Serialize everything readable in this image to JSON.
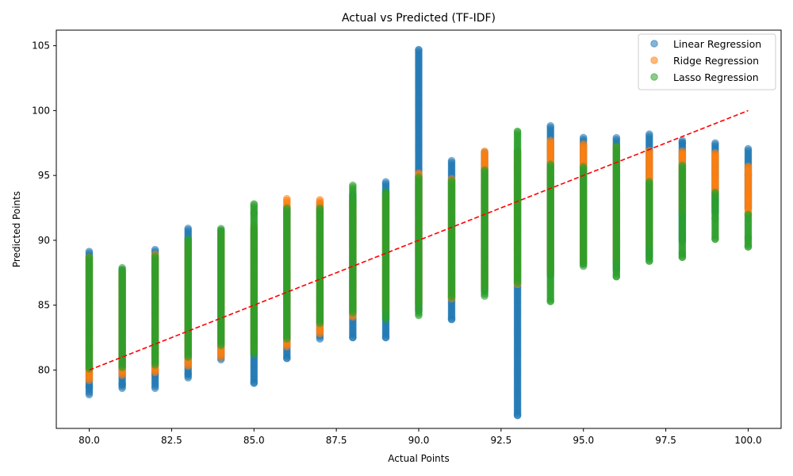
{
  "chart_data": {
    "type": "scatter",
    "title": "Actual vs Predicted (TF-IDF)",
    "xlabel": "Actual Points",
    "ylabel": "Predicted Points",
    "xlim": [
      79,
      101
    ],
    "ylim": [
      75.5,
      106.2
    ],
    "x_ticks": [
      "80.0",
      "82.5",
      "85.0",
      "87.5",
      "90.0",
      "92.5",
      "95.0",
      "97.5",
      "100.0"
    ],
    "y_ticks": [
      "80",
      "85",
      "90",
      "95",
      "100",
      "105"
    ],
    "grid": false,
    "legend_position": "top-right",
    "reference_line": {
      "style": "dashed",
      "color": "#ff0000",
      "from": [
        80,
        80
      ],
      "to": [
        100,
        100
      ]
    },
    "series": [
      {
        "name": "Linear Regression",
        "color": "#1f77b4",
        "ranges": [
          {
            "x": 80,
            "min": 78.1,
            "max": 89.2
          },
          {
            "x": 81,
            "min": 78.6,
            "max": 87.8
          },
          {
            "x": 82,
            "min": 78.6,
            "max": 89.3
          },
          {
            "x": 83,
            "min": 79.4,
            "max": 91.0
          },
          {
            "x": 84,
            "min": 80.8,
            "max": 90.8
          },
          {
            "x": 85,
            "min": 79.0,
            "max": 90.9
          },
          {
            "x": 86,
            "min": 80.9,
            "max": 92.6
          },
          {
            "x": 87,
            "min": 82.4,
            "max": 92.9
          },
          {
            "x": 88,
            "min": 82.5,
            "max": 93.6
          },
          {
            "x": 89,
            "min": 82.5,
            "max": 94.5
          },
          {
            "x": 90,
            "min": 84.6,
            "max": 104.7
          },
          {
            "x": 91,
            "min": 83.9,
            "max": 96.2
          },
          {
            "x": 92,
            "min": 86.1,
            "max": 96.8
          },
          {
            "x": 93,
            "min": 76.5,
            "max": 97.0
          },
          {
            "x": 94,
            "min": 87.3,
            "max": 98.9
          },
          {
            "x": 95,
            "min": 88.2,
            "max": 98.0
          },
          {
            "x": 96,
            "min": 87.7,
            "max": 98.0
          },
          {
            "x": 97,
            "min": 88.7,
            "max": 98.2
          },
          {
            "x": 98,
            "min": 89.9,
            "max": 97.8
          },
          {
            "x": 99,
            "min": 92.1,
            "max": 97.6
          },
          {
            "x": 100,
            "min": 92.5,
            "max": 97.1
          }
        ],
        "extra_points": [
          [
            90,
            104.7
          ],
          [
            93,
            76.5
          ],
          [
            81,
            78.9
          ],
          [
            80,
            78.7
          ],
          [
            82,
            79.7
          ],
          [
            83,
            79.7
          ],
          [
            85,
            79.0
          ],
          [
            86,
            80.9
          ],
          [
            88,
            82.5
          ],
          [
            89,
            82.5
          ],
          [
            91,
            83.9
          ],
          [
            100,
            95.0
          ],
          [
            100,
            92.5
          ],
          [
            99,
            95.1
          ],
          [
            98,
            97.5
          ]
        ]
      },
      {
        "name": "Ridge Regression",
        "color": "#ff7f0e",
        "ranges": [
          {
            "x": 80,
            "min": 79.2,
            "max": 88.7
          },
          {
            "x": 81,
            "min": 79.6,
            "max": 87.6
          },
          {
            "x": 82,
            "min": 79.8,
            "max": 89.0
          },
          {
            "x": 83,
            "min": 80.3,
            "max": 89.8
          },
          {
            "x": 84,
            "min": 81.0,
            "max": 90.6
          },
          {
            "x": 85,
            "min": 81.5,
            "max": 91.1
          },
          {
            "x": 86,
            "min": 81.8,
            "max": 93.2
          },
          {
            "x": 87,
            "min": 82.8,
            "max": 93.2
          },
          {
            "x": 88,
            "min": 84.1,
            "max": 93.0
          },
          {
            "x": 89,
            "min": 84.7,
            "max": 93.5
          },
          {
            "x": 90,
            "min": 85.1,
            "max": 95.2
          },
          {
            "x": 91,
            "min": 85.5,
            "max": 94.8
          },
          {
            "x": 92,
            "min": 86.3,
            "max": 96.9
          },
          {
            "x": 93,
            "min": 86.6,
            "max": 96.8
          },
          {
            "x": 94,
            "min": 87.5,
            "max": 97.7
          },
          {
            "x": 95,
            "min": 88.3,
            "max": 97.5
          },
          {
            "x": 96,
            "min": 88.5,
            "max": 97.2
          },
          {
            "x": 97,
            "min": 89.6,
            "max": 97.0
          },
          {
            "x": 98,
            "min": 92.3,
            "max": 96.9
          },
          {
            "x": 99,
            "min": 93.5,
            "max": 96.8
          },
          {
            "x": 100,
            "min": 92.0,
            "max": 95.7
          }
        ],
        "extra_points": [
          [
            100,
            95.7
          ],
          [
            100,
            93.3
          ],
          [
            99,
            96.4
          ],
          [
            99,
            94.5
          ],
          [
            98,
            92.6
          ],
          [
            98,
            94.5
          ],
          [
            98,
            96.6
          ]
        ]
      },
      {
        "name": "Lasso Regression",
        "color": "#2ca02c",
        "ranges": [
          {
            "x": 80,
            "min": 80.1,
            "max": 88.8
          },
          {
            "x": 81,
            "min": 80.2,
            "max": 87.9
          },
          {
            "x": 82,
            "min": 80.4,
            "max": 88.9
          },
          {
            "x": 83,
            "min": 81.0,
            "max": 90.2
          },
          {
            "x": 84,
            "min": 81.9,
            "max": 90.9
          },
          {
            "x": 85,
            "min": 81.2,
            "max": 92.8
          },
          {
            "x": 86,
            "min": 82.4,
            "max": 92.5
          },
          {
            "x": 87,
            "min": 83.6,
            "max": 92.5
          },
          {
            "x": 88,
            "min": 84.4,
            "max": 94.3
          },
          {
            "x": 89,
            "min": 83.9,
            "max": 93.8
          },
          {
            "x": 90,
            "min": 84.2,
            "max": 94.9
          },
          {
            "x": 91,
            "min": 85.6,
            "max": 94.7
          },
          {
            "x": 92,
            "min": 85.7,
            "max": 95.5
          },
          {
            "x": 93,
            "min": 86.7,
            "max": 98.4
          },
          {
            "x": 94,
            "min": 85.3,
            "max": 95.9
          },
          {
            "x": 95,
            "min": 88.0,
            "max": 95.7
          },
          {
            "x": 96,
            "min": 87.2,
            "max": 97.3
          },
          {
            "x": 97,
            "min": 88.4,
            "max": 94.6
          },
          {
            "x": 98,
            "min": 88.7,
            "max": 95.8
          },
          {
            "x": 99,
            "min": 90.1,
            "max": 93.8
          },
          {
            "x": 100,
            "min": 89.5,
            "max": 92.0
          }
        ],
        "extra_points": [
          [
            93,
            98.4
          ],
          [
            94,
            85.3
          ],
          [
            85,
            92.8
          ],
          [
            85,
            92.1
          ],
          [
            100,
            90.2
          ],
          [
            100,
            89.5
          ],
          [
            100,
            92.0
          ],
          [
            99,
            90.1
          ],
          [
            99,
            91.7
          ],
          [
            98,
            88.7
          ],
          [
            98,
            89.0
          ],
          [
            97,
            88.4
          ],
          [
            96,
            87.2
          ]
        ]
      }
    ]
  }
}
